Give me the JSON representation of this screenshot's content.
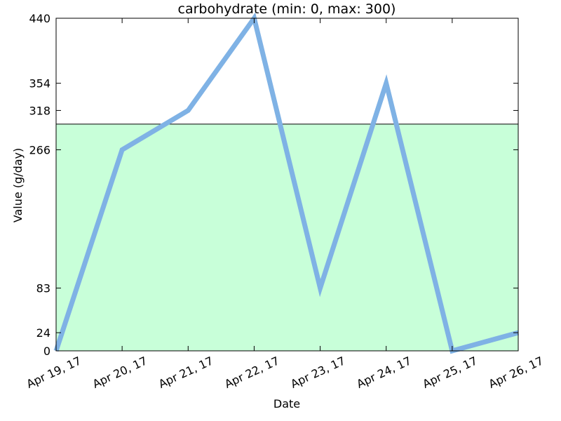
{
  "chart_data": {
    "type": "line",
    "title": "carbohydrate (min: 0, max: 300)",
    "xlabel": "Date",
    "ylabel": "Value (g/day)",
    "categories": [
      "Apr 19, 17",
      "Apr 20, 17",
      "Apr 21, 17",
      "Apr 22, 17",
      "Apr 23, 17",
      "Apr 24, 17",
      "Apr 25, 17",
      "Apr 26, 17"
    ],
    "values": [
      0,
      266,
      318,
      440,
      83,
      354,
      0,
      24
    ],
    "ylim": [
      0,
      440
    ],
    "yticks": [
      0,
      24,
      83,
      266,
      318,
      354,
      440
    ],
    "target_range": [
      0,
      300
    ],
    "grid": false,
    "colors": {
      "line": "#7fb2e5",
      "target_fill": "#c8ffd9"
    }
  }
}
